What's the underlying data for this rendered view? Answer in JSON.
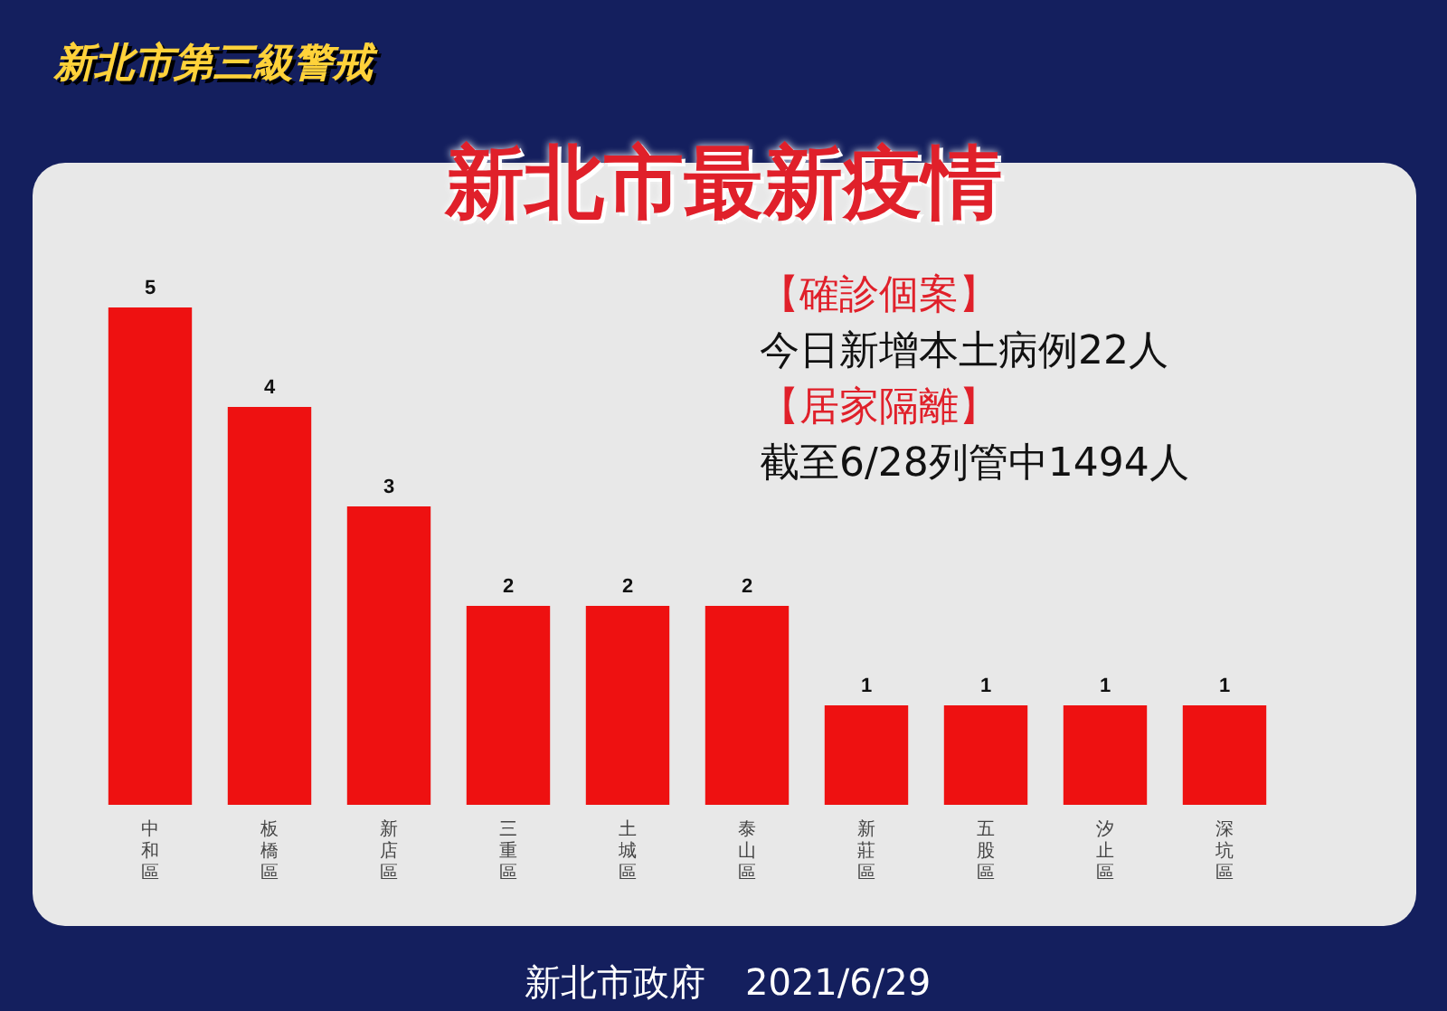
{
  "chart_data": {
    "type": "bar",
    "title": "新北市最新疫情",
    "subtitle": "新北市第三級警戒",
    "categories": [
      "中和區",
      "板橋區",
      "新店區",
      "三重區",
      "土城區",
      "泰山區",
      "新莊區",
      "五股區",
      "汐止區",
      "深坑區"
    ],
    "values": [
      5,
      4,
      3,
      2,
      2,
      2,
      1,
      1,
      1,
      1
    ],
    "color": "#ee1111",
    "data_labels": true,
    "tick_labels": "x",
    "annotations": [
      "【確診個案】",
      "今日新增本土病例22人",
      "【居家隔離】",
      "截至6/28列管中1494人",
      "新北市政府",
      "2021/6/29"
    ]
  }
}
